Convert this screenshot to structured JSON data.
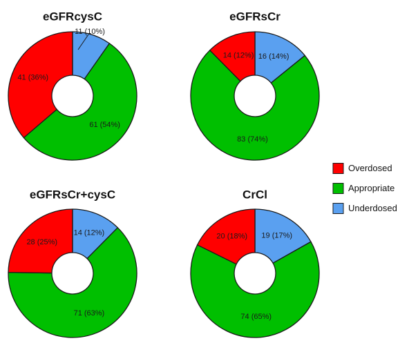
{
  "colors": {
    "overdosed": "#ff0000",
    "appropriate": "#00bf00",
    "underdosed": "#5aa0f0",
    "stroke": "#1a1a1a"
  },
  "legend": [
    {
      "label": "Overdosed",
      "color_key": "overdosed"
    },
    {
      "label": "Appropriate",
      "color_key": "appropriate"
    },
    {
      "label": "Underdosed",
      "color_key": "underdosed"
    }
  ],
  "chart_data": [
    {
      "type": "pie",
      "title": "eGFRcysC",
      "legend_position": "right",
      "slices": [
        {
          "category": "Underdosed",
          "value": 11,
          "label": "11 (10%)"
        },
        {
          "category": "Appropriate",
          "value": 61,
          "label": "61 (54%)"
        },
        {
          "category": "Overdosed",
          "value": 41,
          "label": "41 (36%)"
        }
      ]
    },
    {
      "type": "pie",
      "title": "eGFRsCr",
      "legend_position": "right",
      "slices": [
        {
          "category": "Underdosed",
          "value": 16,
          "label": "16 (14%)"
        },
        {
          "category": "Appropriate",
          "value": 83,
          "label": "83 (74%)"
        },
        {
          "category": "Overdosed",
          "value": 14,
          "label": "14 (12%)"
        }
      ]
    },
    {
      "type": "pie",
      "title": "eGFRsCr+cysC",
      "legend_position": "right",
      "slices": [
        {
          "category": "Underdosed",
          "value": 14,
          "label": "14 (12%)"
        },
        {
          "category": "Appropriate",
          "value": 71,
          "label": "71 (63%)"
        },
        {
          "category": "Overdosed",
          "value": 28,
          "label": "28 (25%)"
        }
      ]
    },
    {
      "type": "pie",
      "title": "CrCl",
      "legend_position": "right",
      "slices": [
        {
          "category": "Underdosed",
          "value": 19,
          "label": "19 (17%)"
        },
        {
          "category": "Appropriate",
          "value": 74,
          "label": "74 (65%)"
        },
        {
          "category": "Overdosed",
          "value": 20,
          "label": "20 (18%)"
        }
      ]
    }
  ]
}
